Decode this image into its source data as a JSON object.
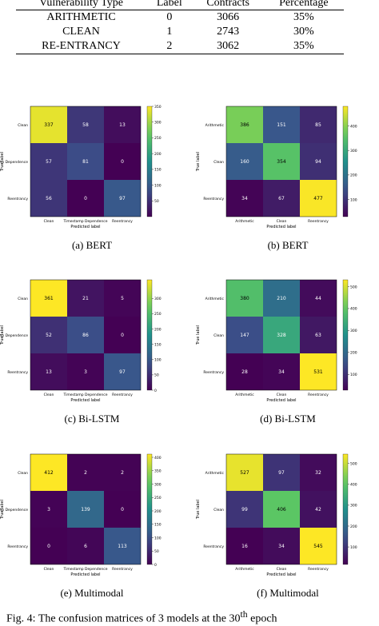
{
  "table": {
    "header": [
      "Vulnerability Type",
      "Label",
      "Contracts",
      "Percentage"
    ],
    "rows": [
      [
        "ARITHMETIC",
        "0",
        "3066",
        "35%"
      ],
      [
        "CLEAN",
        "1",
        "2743",
        "30%"
      ],
      [
        "RE-ENTRANCY",
        "2",
        "3062",
        "35%"
      ]
    ]
  },
  "colormap": "viridis",
  "figures": [
    {
      "caption": "(a) BERT",
      "row_labels": [
        "Clean",
        "Timestamp Dependence",
        "Reentrancy"
      ],
      "col_labels": [
        "Clean",
        "Timestamp Dependence",
        "Reentrancy"
      ],
      "xlabel": "Predicted label",
      "ylabel": "True label",
      "values": [
        [
          337,
          58,
          13
        ],
        [
          57,
          81,
          0
        ],
        [
          56,
          0,
          97
        ]
      ],
      "clim": [
        0,
        350
      ],
      "cticks": [
        50,
        100,
        150,
        200,
        250,
        300,
        350
      ]
    },
    {
      "caption": "(b) BERT",
      "row_labels": [
        "Arithmetic",
        "Clean",
        "Reentrancy"
      ],
      "col_labels": [
        "Arithmetic",
        "Clean",
        "Reentrancy"
      ],
      "xlabel": "Predicted label",
      "ylabel": "True label",
      "values": [
        [
          386,
          151,
          85
        ],
        [
          160,
          354,
          94
        ],
        [
          34,
          67,
          477
        ]
      ],
      "clim": [
        30,
        480
      ],
      "cticks": [
        100,
        200,
        300,
        400
      ]
    },
    {
      "caption": "(c) Bi-LSTM",
      "row_labels": [
        "Clean",
        "Timestamp Dependence",
        "Reentrancy"
      ],
      "col_labels": [
        "Clean",
        "Timestamp Dependence",
        "Reentrancy"
      ],
      "xlabel": "Predicted label",
      "ylabel": "True label",
      "values": [
        [
          361,
          21,
          5
        ],
        [
          52,
          86,
          0
        ],
        [
          13,
          3,
          97
        ]
      ],
      "clim": [
        0,
        361
      ],
      "cticks": [
        0,
        50,
        100,
        150,
        200,
        250,
        300
      ]
    },
    {
      "caption": "(d) Bi-LSTM",
      "row_labels": [
        "Arithmetic",
        "Clean",
        "Reentrancy"
      ],
      "col_labels": [
        "Arithmetic",
        "Clean",
        "Reentrancy"
      ],
      "xlabel": "Predicted label",
      "ylabel": "True label",
      "values": [
        [
          380,
          210,
          44
        ],
        [
          147,
          328,
          63
        ],
        [
          28,
          34,
          531
        ]
      ],
      "clim": [
        28,
        531
      ],
      "cticks": [
        100,
        200,
        300,
        400,
        500
      ]
    },
    {
      "caption": "(e) Multimodal",
      "row_labels": [
        "Clean",
        "Timestamp Dependence",
        "Reentrancy"
      ],
      "col_labels": [
        "Clean",
        "Timestamp Dependence",
        "Reentrancy"
      ],
      "xlabel": "Predicted label",
      "ylabel": "True label",
      "values": [
        [
          412,
          2,
          2
        ],
        [
          3,
          139,
          0
        ],
        [
          0,
          6,
          113
        ]
      ],
      "clim": [
        0,
        412
      ],
      "cticks": [
        0,
        50,
        100,
        150,
        200,
        250,
        300,
        350,
        400
      ]
    },
    {
      "caption": "(f) Multimodal",
      "row_labels": [
        "Arithmetic",
        "Clean",
        "Reentrancy"
      ],
      "col_labels": [
        "Arithmetic",
        "Clean",
        "Reentrancy"
      ],
      "xlabel": "Predicted label",
      "ylabel": "True label",
      "values": [
        [
          527,
          97,
          32
        ],
        [
          99,
          406,
          42
        ],
        [
          16,
          34,
          545
        ]
      ],
      "clim": [
        16,
        545
      ],
      "cticks": [
        100,
        200,
        300,
        400,
        500
      ]
    }
  ],
  "figure_caption": {
    "text": "Fig. 4: The confusion matrices of 3 models at the 30",
    "sup": "th",
    "rest": " epoch"
  }
}
